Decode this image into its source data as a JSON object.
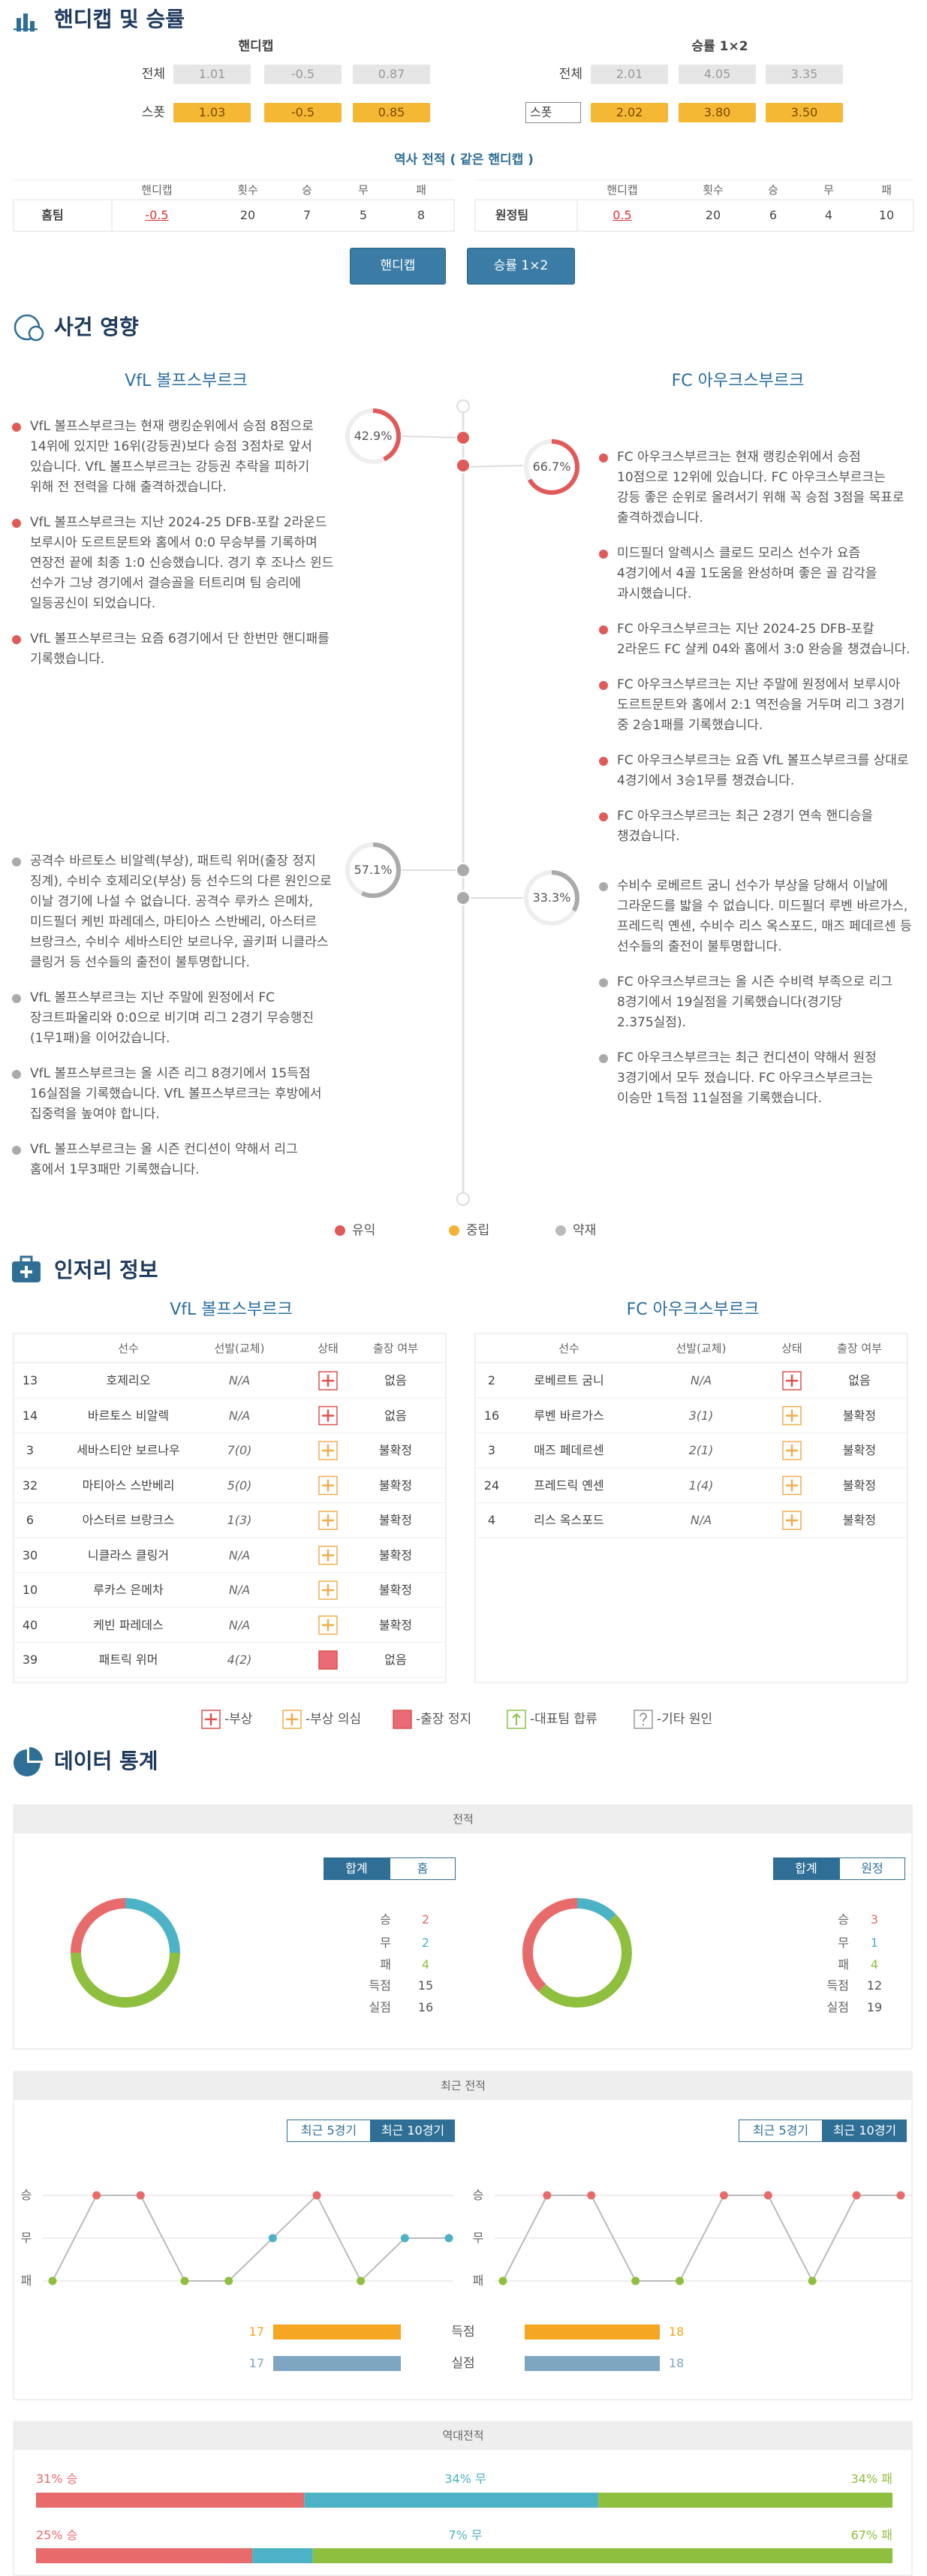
{
  "odds": {
    "title": "핸디캡 및 승률",
    "handicap": {
      "title": "핸디캡",
      "rows": [
        {
          "label": "전체",
          "values": [
            "1.01",
            "-0.5",
            "0.87"
          ]
        },
        {
          "label": "스폿",
          "values": [
            "1.03",
            "-0.5",
            "0.85"
          ]
        }
      ]
    },
    "win": {
      "title": "승률 1×2",
      "rows": [
        {
          "label": "전체",
          "values": [
            "2.01",
            "4.05",
            "3.35"
          ]
        },
        {
          "select": "스폿",
          "values": [
            "2.02",
            "3.80",
            "3.50"
          ]
        }
      ]
    }
  },
  "history": {
    "title": "역사 전적 ( 같은 핸디캡 )",
    "headers": [
      "핸디캡",
      "횟수",
      "승",
      "무",
      "패"
    ],
    "home": [
      "홈팀",
      "-0.5",
      "20",
      "7",
      "5",
      "8"
    ],
    "away": [
      "원정팀",
      "0.5",
      "20",
      "6",
      "4",
      "10"
    ]
  },
  "buttons": [
    "핸디캡",
    "승률 1×2"
  ],
  "events": {
    "title": "사건 영향",
    "home": "VfL 볼프스부르크",
    "away": "FC 아우크스부르크",
    "legend": [
      {
        "label": "유익",
        "color": "#e05a5a"
      },
      {
        "label": "중립",
        "color": "#f5b335"
      },
      {
        "label": "약재",
        "color": "#bbbbbb"
      }
    ],
    "groups": [
      {
        "kind": 0,
        "home": {
          "pct": 42.9,
          "pct_label": "42.9%",
          "items": [
            "VfL 볼프스부르크는 현재 랭킹순위에서 승점 8점으로 14위에 있지만 16위(강등권)보다 승점 3점차로 앞서 있습니다. VfL 볼프스부르크는 강등권 추락을 피하기 위해 전 전력을 다해 출격하겠습니다.",
            "VfL 볼프스부르크는 지난 2024-25 DFB-포칼 2라운드 보루시아 도르트문트와 홈에서 0:0 무승부를 기록하며 연장전 끝에 최종 1:0 신승했습니다. 경기 후 조나스 윈드 선수가 그냥 경기에서 결승골을 터트리며 팀 승리에 일등공신이 되었습니다.",
            "VfL 볼프스부르크는 요즘 6경기에서 단 한번만 핸디패를 기록했습니다."
          ]
        },
        "away": {
          "pct": 66.7,
          "pct_label": "66.7%",
          "items": [
            "FC 아우크스부르크는 현재 랭킹순위에서 승점 10점으로 12위에 있습니다. FC 아우크스부르크는 강등 좋은 순위로 올려서기 위해 꼭 승점 3점을 목표로 출격하겠습니다.",
            "미드필더 알렉시스 클로드 모리스 선수가 요즘 4경기에서 4골 1도움을 완성하며 좋은 골 감각을 과시했습니다.",
            "FC 아우크스부르크는 지난 2024-25 DFB-포칼 2라운드 FC 샬케 04와 홈에서 3:0 완승을 챙겼습니다.",
            "FC 아우크스부르크는 지난 주말에 원정에서 보루시아 도르트문트와 홈에서 2:1 역전승을 거두며 리그 3경기 중 2승1패를 기록했습니다.",
            "FC 아우크스부르크는 요즘 VfL 볼프스부르크를 상대로 4경기에서 3승1무를 챙겼습니다.",
            "FC 아우크스부르크는 최근 2경기 연속 핸디승을 챙겼습니다."
          ]
        }
      },
      {
        "kind": 2,
        "home": {
          "pct": 57.1,
          "pct_label": "57.1%",
          "items": [
            "공격수 바르토스 비알렉(부상), 패트릭 위머(출장 정지 징계), 수비수 호제리오(부상) 등 선수드의 다른 원인으로 이날 경기에 나설 수 없습니다. 공격수 루카스 은메차, 미드필더 케빈 파레데스, 마티아스 스반베리, 아스터르 브랑크스, 수비수 세바스티안 보르나우, 골키퍼 니클라스 클링거 등 선수들의 출전이 불투명합니다.",
            "VfL 볼프스부르크는 지난 주말에 원정에서 FC 장크트파울리와 0:0으로 비기며 리그 2경기 무승행진(1무1패)을 이어갔습니다.",
            "VfL 볼프스부르크는 올 시즌 리그 8경기에서 15득점 16실점을 기록했습니다. VfL 볼프스부르크는 후방에서 집중력을 높여야 합니다.",
            "VfL 볼프스부르크는 올 시즌 컨디션이 약해서 리그 홈에서 1무3패만 기록했습니다."
          ]
        },
        "away": {
          "pct": 33.3,
          "pct_label": "33.3%",
          "items": [
            "수비수 로베르트 굼니 선수가 부상을 당해서 이날에 그라운드를 밟을 수 없습니다. 미드필더 루벤 바르가스, 프레드릭 옌센, 수비수 리스 옥스포드, 매즈 페데르센 등 선수들의 출전이 불투명합니다.",
            "FC 아우크스부르크는 올 시즌 수비력 부족으로 리그 8경기에서 19실점을 기록했습니다(경기당 2.375실점).",
            "FC 아우크스부르크는 최근 컨디션이 약해서 원정 3경기에서 모두 졌습니다. FC 아우크스부르크는 이승만 1득점 11실점을 기록했습니다."
          ]
        }
      }
    ]
  },
  "injury": {
    "title": "인저리 정보",
    "headers": [
      "선수",
      "선발(교체)",
      "상태",
      "출장 여부"
    ],
    "legend": [
      "-부상",
      "-부상 의심",
      "-출장 정지",
      "-대표팀 합류",
      "-기타 원인"
    ],
    "teams": [
      {
        "name": "VfL 볼프스부르크",
        "rows": [
          {
            "no": "13",
            "name": "호제리오",
            "apps": "N/A",
            "status": 0,
            "play": "없음"
          },
          {
            "no": "14",
            "name": "바르토스 비알렉",
            "apps": "N/A",
            "status": 0,
            "play": "없음"
          },
          {
            "no": "3",
            "name": "세바스티안 보르나우",
            "apps": "7(0)",
            "status": 1,
            "play": "불확정"
          },
          {
            "no": "32",
            "name": "마티아스 스반베리",
            "apps": "5(0)",
            "status": 1,
            "play": "불확정"
          },
          {
            "no": "6",
            "name": "아스터르 브랑크스",
            "apps": "1(3)",
            "status": 1,
            "play": "불확정"
          },
          {
            "no": "30",
            "name": "니클라스 클링거",
            "apps": "N/A",
            "status": 1,
            "play": "불확정"
          },
          {
            "no": "10",
            "name": "루카스 은메차",
            "apps": "N/A",
            "status": 1,
            "play": "불확정"
          },
          {
            "no": "40",
            "name": "케빈 파레데스",
            "apps": "N/A",
            "status": 1,
            "play": "불확정"
          },
          {
            "no": "39",
            "name": "패트릭 위머",
            "apps": "4(2)",
            "status": 2,
            "play": "없음"
          }
        ]
      },
      {
        "name": "FC 아우크스부르크",
        "rows": [
          {
            "no": "2",
            "name": "로베르트 굼니",
            "apps": "N/A",
            "status": 0,
            "play": "없음"
          },
          {
            "no": "16",
            "name": "루벤 바르가스",
            "apps": "3(1)",
            "status": 1,
            "play": "불확정"
          },
          {
            "no": "3",
            "name": "매즈 페데르센",
            "apps": "2(1)",
            "status": 1,
            "play": "불확정"
          },
          {
            "no": "24",
            "name": "프레드릭 옌센",
            "apps": "1(4)",
            "status": 1,
            "play": "불확정"
          },
          {
            "no": "4",
            "name": "리스 옥스포드",
            "apps": "N/A",
            "status": 1,
            "play": "불확정"
          }
        ]
      }
    ]
  },
  "stats": {
    "title": "데이터 통계",
    "record": {
      "title": "전적",
      "colors": [
        "#e86b6b",
        "#4cb3c6",
        "#8fbf3f",
        "#555555",
        "#555555"
      ],
      "labels": [
        "승",
        "무",
        "패",
        "득점",
        "실점"
      ],
      "teams": [
        {
          "tabs": [
            "합계",
            "홈"
          ],
          "values": [
            2,
            2,
            4,
            15,
            16
          ]
        },
        {
          "tabs": [
            "합계",
            "원정"
          ],
          "values": [
            3,
            1,
            4,
            12,
            19
          ]
        }
      ]
    },
    "recent": {
      "title": "최근 전적",
      "tabs": [
        "최근 5경기",
        "최근 10경기"
      ]
    },
    "h2h_title": "역대전적"
  },
  "chart_data": [
    {
      "type": "line",
      "ylim": [
        0,
        2
      ],
      "yticks": [
        {
          "value": 2,
          "label": "승"
        },
        {
          "value": 1,
          "label": "무"
        },
        {
          "value": 0,
          "label": "패"
        }
      ],
      "line_color": "#bbbbbb",
      "point_colors": [
        "#8fbf3f",
        "#4cb3c6",
        "#e86b6b"
      ],
      "grid": true,
      "series": [
        {
          "values": [
            0,
            2,
            2,
            0,
            0,
            1,
            2,
            0,
            1,
            1
          ]
        }
      ]
    },
    {
      "type": "line",
      "ylim": [
        0,
        2
      ],
      "yticks": [
        {
          "value": 2,
          "label": "승"
        },
        {
          "value": 1,
          "label": "무"
        },
        {
          "value": 0,
          "label": "패"
        }
      ],
      "line_color": "#bbbbbb",
      "point_colors": [
        "#8fbf3f",
        "#4cb3c6",
        "#e86b6b"
      ],
      "grid": true,
      "series": [
        {
          "values": [
            0,
            2,
            2,
            0,
            0,
            2,
            2,
            0,
            2,
            2
          ]
        }
      ]
    },
    {
      "type": "bar",
      "categories": [
        "득점",
        "실점"
      ],
      "colors": [
        "#f5a623",
        "#7ea6c0"
      ],
      "series": [
        {
          "values": [
            17,
            17
          ]
        },
        {
          "values": [
            18,
            18
          ]
        }
      ]
    },
    {
      "type": "stacked_bar",
      "colors": [
        "#e86b6b",
        "#4cb3c6",
        "#8fbf3f"
      ],
      "series": [
        {
          "values": [
            31,
            34,
            34
          ],
          "value_labels": [
            "31% 승",
            "34% 무",
            "34% 패"
          ]
        },
        {
          "values": [
            25,
            7,
            67
          ],
          "value_labels": [
            "25% 승",
            "7% 무",
            "67% 패"
          ]
        }
      ]
    }
  ]
}
